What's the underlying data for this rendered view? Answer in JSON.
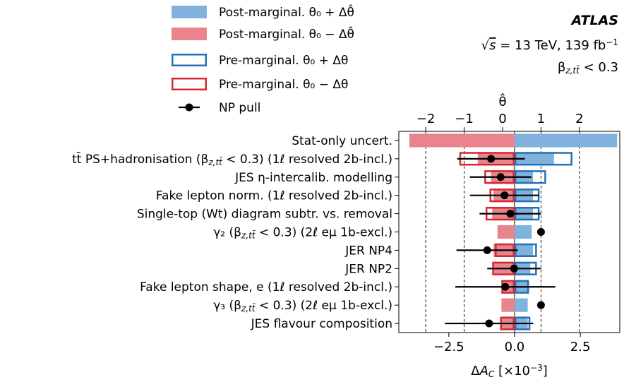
{
  "chart_data": {
    "type": "bar",
    "orientation": "horizontal",
    "experiment": "ATLAS",
    "energy_label": "√s = 13 TeV, 139 fb⁻¹",
    "selection_label": "β_{z,tt̄} < 0.3",
    "xlabel": "ΔA_C [×10⁻³]",
    "xlim": [
      -4.4,
      4.0
    ],
    "xticks": [
      -2.5,
      0.0,
      2.5
    ],
    "xticklabels": [
      "−2.5",
      "0.0",
      "2.5"
    ],
    "top_axis_label": "θ̂",
    "top_xlim": [
      -2.7,
      3.05
    ],
    "top_xticks": [
      -2,
      -1,
      0,
      1,
      2
    ],
    "top_xticklabels": [
      "−2",
      "−1",
      "0",
      "1",
      "2"
    ],
    "grid": "dashed vertical lines at θ̂ = −2, −1, 1, 2",
    "legend_position": "top-left",
    "legend": [
      {
        "key": "post_up",
        "label": "Post-marginal. θ₀ + Δθ̂"
      },
      {
        "key": "post_down",
        "label": "Post-marginal. θ₀ − Δθ̂"
      },
      {
        "key": "pre_up",
        "label": "Pre-marginal. θ₀ + Δθ"
      },
      {
        "key": "pre_down",
        "label": "Pre-marginal. θ₀ − Δθ"
      },
      {
        "key": "pull",
        "label": "NP pull"
      }
    ],
    "colors": {
      "post_up": "#7fb2dd",
      "post_down": "#e9848c",
      "pre_up": "#2272b5",
      "pre_down": "#d8272e",
      "pull": "#000000"
    },
    "categories": [
      "Stat-only uncert.",
      "tt̄ PS+hadronisation (β_{z,tt̄} < 0.3) (1ℓ resolved 2b-incl.)",
      "JES η-intercalib. modelling",
      "Fake lepton norm. (1ℓ resolved 2b-incl.)",
      "Single-top (Wt) diagram subtr. vs. removal",
      "γ₂ (β_{z,tt̄} < 0.3) (2ℓ eμ 1b-excl.)",
      "JER NP4",
      "JER NP2",
      "Fake lepton shape, e (1ℓ resolved 2b-incl.)",
      "γ₃ (β_{z,tt̄} < 0.3) (2ℓ eμ 1b-excl.)",
      "JES flavour composition"
    ],
    "series": [
      {
        "name": "Post-marginal. θ₀ + Δθ̂",
        "key": "post_up",
        "values": [
          3.9,
          1.5,
          0.7,
          0.7,
          0.7,
          0.65,
          0.7,
          0.6,
          0.5,
          0.5,
          0.5
        ]
      },
      {
        "name": "Post-marginal. θ₀ − Δθ̂",
        "key": "post_down",
        "values": [
          -4.0,
          -1.4,
          -0.9,
          -0.8,
          -0.85,
          -0.65,
          -0.8,
          -0.8,
          -0.5,
          -0.5,
          -0.5
        ]
      },
      {
        "name": "Pre-marginal. θ₀ + Δθ",
        "key": "pre_up",
        "values": [
          null,
          2.2,
          1.2,
          0.95,
          0.95,
          null,
          0.85,
          0.85,
          0.55,
          null,
          0.6
        ]
      },
      {
        "name": "Pre-marginal. θ₀ − Δθ",
        "key": "pre_down",
        "values": [
          null,
          -2.1,
          -1.15,
          -0.95,
          -1.1,
          null,
          -0.75,
          -0.85,
          -0.5,
          null,
          -0.55
        ]
      }
    ],
    "pulls": {
      "name": "NP pull",
      "values": [
        null,
        -0.3,
        -0.05,
        0.05,
        0.2,
        1.0,
        -0.4,
        0.3,
        0.07,
        1.0,
        -0.35
      ],
      "errors": [
        null,
        0.88,
        0.8,
        0.9,
        0.8,
        0.0,
        0.8,
        0.7,
        1.3,
        0.0,
        1.15
      ]
    }
  }
}
